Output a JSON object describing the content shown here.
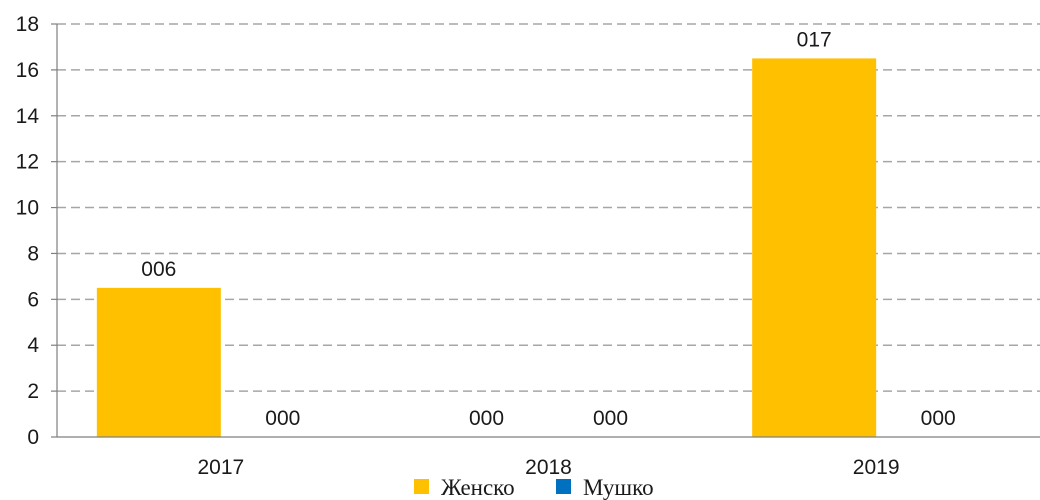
{
  "chart_data": {
    "type": "bar",
    "categories": [
      "2017",
      "2018",
      "2019"
    ],
    "series": [
      {
        "name": "Женско",
        "color": "#FFC000",
        "values": [
          6.5,
          0,
          16.5
        ],
        "labels": [
          "006",
          "000",
          "017"
        ]
      },
      {
        "name": "Мушко",
        "color": "#0070C0",
        "values": [
          0,
          0,
          0
        ],
        "labels": [
          "000",
          "000",
          "000"
        ]
      }
    ],
    "ylim": [
      0,
      18
    ],
    "yticks": [
      0,
      2,
      4,
      6,
      8,
      10,
      12,
      14,
      16,
      18
    ],
    "grid": true,
    "legend_position": "bottom-center"
  }
}
